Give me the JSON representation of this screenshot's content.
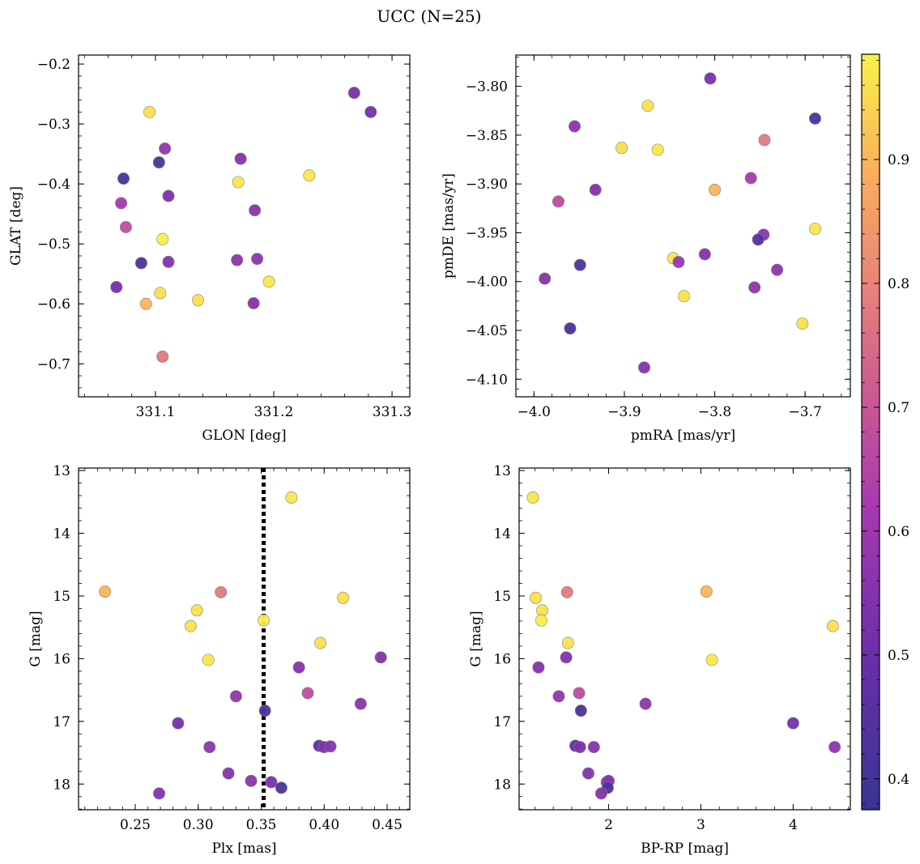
{
  "title": "UCC (N=25)",
  "colorbar": {
    "range": [
      0.375,
      0.985
    ],
    "ticks": [
      0.4,
      0.5,
      0.6,
      0.7,
      0.8,
      0.9
    ],
    "tick_labels": [
      "0.4",
      "0.5",
      "0.6",
      "0.7",
      "0.8",
      "0.9"
    ]
  },
  "chart_data": [
    {
      "type": "scatter",
      "xlabel": "GLON [deg]",
      "ylabel": "GLAT [deg]",
      "xlim": [
        331.035,
        331.315
      ],
      "ylim": [
        -0.755,
        -0.185
      ],
      "xticks": [
        331.1,
        331.2,
        331.3
      ],
      "xtick_labels": [
        "331.1",
        "331.2",
        "331.3"
      ],
      "yticks": [
        -0.2,
        -0.3,
        -0.4,
        -0.5,
        -0.6,
        -0.7
      ],
      "ytick_labels": [
        "−0.2",
        "−0.3",
        "−0.4",
        "−0.5",
        "−0.6",
        "−0.7"
      ],
      "points": [
        {
          "x": 331.268,
          "y": -0.248,
          "c": 0.53
        },
        {
          "x": 331.282,
          "y": -0.28,
          "c": 0.52
        },
        {
          "x": 331.095,
          "y": -0.28,
          "c": 0.96
        },
        {
          "x": 331.108,
          "y": -0.341,
          "c": 0.58
        },
        {
          "x": 331.172,
          "y": -0.358,
          "c": 0.55
        },
        {
          "x": 331.103,
          "y": -0.364,
          "c": 0.42
        },
        {
          "x": 331.073,
          "y": -0.391,
          "c": 0.42
        },
        {
          "x": 331.23,
          "y": -0.386,
          "c": 0.97
        },
        {
          "x": 331.17,
          "y": -0.397,
          "c": 0.97
        },
        {
          "x": 331.111,
          "y": -0.42,
          "c": 0.54
        },
        {
          "x": 331.071,
          "y": -0.432,
          "c": 0.62
        },
        {
          "x": 331.184,
          "y": -0.444,
          "c": 0.56
        },
        {
          "x": 331.075,
          "y": -0.472,
          "c": 0.68
        },
        {
          "x": 331.106,
          "y": -0.492,
          "c": 0.98
        },
        {
          "x": 331.088,
          "y": -0.532,
          "c": 0.42
        },
        {
          "x": 331.111,
          "y": -0.53,
          "c": 0.55
        },
        {
          "x": 331.169,
          "y": -0.527,
          "c": 0.57
        },
        {
          "x": 331.186,
          "y": -0.525,
          "c": 0.57
        },
        {
          "x": 331.196,
          "y": -0.563,
          "c": 0.97
        },
        {
          "x": 331.067,
          "y": -0.572,
          "c": 0.52
        },
        {
          "x": 331.104,
          "y": -0.582,
          "c": 0.96
        },
        {
          "x": 331.092,
          "y": -0.6,
          "c": 0.9
        },
        {
          "x": 331.136,
          "y": -0.594,
          "c": 0.96
        },
        {
          "x": 331.183,
          "y": -0.599,
          "c": 0.55
        },
        {
          "x": 331.106,
          "y": -0.688,
          "c": 0.78
        }
      ]
    },
    {
      "type": "scatter",
      "xlabel": "pmRA [mas/yr]",
      "ylabel": "pmDE [mas/yr]",
      "xlim": [
        -4.02,
        -3.65
      ],
      "ylim": [
        -4.118,
        -3.768
      ],
      "xticks": [
        -4.0,
        -3.9,
        -3.8,
        -3.7
      ],
      "xtick_labels": [
        "−4.0",
        "−3.9",
        "−3.8",
        "−3.7"
      ],
      "yticks": [
        -3.8,
        -3.85,
        -3.9,
        -3.95,
        -4.0,
        -4.05,
        -4.1
      ],
      "ytick_labels": [
        "−3.80",
        "−3.85",
        "−3.90",
        "−3.95",
        "−4.00",
        "−4.05",
        "−4.10"
      ],
      "points": [
        {
          "x": -3.805,
          "y": -3.792,
          "c": 0.53
        },
        {
          "x": -3.874,
          "y": -3.82,
          "c": 0.96
        },
        {
          "x": -3.689,
          "y": -3.833,
          "c": 0.42
        },
        {
          "x": -3.955,
          "y": -3.841,
          "c": 0.57
        },
        {
          "x": -3.745,
          "y": -3.855,
          "c": 0.78
        },
        {
          "x": -3.903,
          "y": -3.863,
          "c": 0.96
        },
        {
          "x": -3.863,
          "y": -3.865,
          "c": 0.97
        },
        {
          "x": -3.76,
          "y": -3.894,
          "c": 0.62
        },
        {
          "x": -3.932,
          "y": -3.906,
          "c": 0.55
        },
        {
          "x": -3.8,
          "y": -3.906,
          "c": 0.9
        },
        {
          "x": -3.973,
          "y": -3.918,
          "c": 0.68
        },
        {
          "x": -3.689,
          "y": -3.946,
          "c": 0.97
        },
        {
          "x": -3.746,
          "y": -3.952,
          "c": 0.56
        },
        {
          "x": -3.752,
          "y": -3.957,
          "c": 0.45
        },
        {
          "x": -3.811,
          "y": -3.972,
          "c": 0.55
        },
        {
          "x": -3.846,
          "y": -3.976,
          "c": 0.97
        },
        {
          "x": -3.84,
          "y": -3.98,
          "c": 0.6
        },
        {
          "x": -3.949,
          "y": -3.983,
          "c": 0.42
        },
        {
          "x": -3.731,
          "y": -3.988,
          "c": 0.57
        },
        {
          "x": -3.988,
          "y": -3.997,
          "c": 0.55
        },
        {
          "x": -3.756,
          "y": -4.006,
          "c": 0.57
        },
        {
          "x": -3.834,
          "y": -4.015,
          "c": 0.96
        },
        {
          "x": -3.703,
          "y": -4.043,
          "c": 0.96
        },
        {
          "x": -3.96,
          "y": -4.048,
          "c": 0.42
        },
        {
          "x": -3.878,
          "y": -4.088,
          "c": 0.55
        }
      ]
    },
    {
      "type": "scatter",
      "xlabel": "Plx [mas]",
      "ylabel": "G [mag]",
      "xlim": [
        0.205,
        0.468
      ],
      "ylim": [
        18.41,
        12.96
      ],
      "xticks": [
        0.25,
        0.3,
        0.35,
        0.4,
        0.45
      ],
      "xtick_labels": [
        "0.25",
        "0.30",
        "0.35",
        "0.40",
        "0.45"
      ],
      "yticks": [
        13,
        14,
        15,
        16,
        17,
        18
      ],
      "ytick_labels": [
        "13",
        "14",
        "15",
        "16",
        "17",
        "18"
      ],
      "vline": 0.352,
      "points": [
        {
          "x": 0.374,
          "y": 13.43,
          "c": 0.97
        },
        {
          "x": 0.226,
          "y": 14.93,
          "c": 0.9
        },
        {
          "x": 0.318,
          "y": 14.94,
          "c": 0.78
        },
        {
          "x": 0.415,
          "y": 15.03,
          "c": 0.96
        },
        {
          "x": 0.299,
          "y": 15.23,
          "c": 0.96
        },
        {
          "x": 0.352,
          "y": 15.39,
          "c": 0.98
        },
        {
          "x": 0.294,
          "y": 15.48,
          "c": 0.96
        },
        {
          "x": 0.397,
          "y": 15.75,
          "c": 0.96
        },
        {
          "x": 0.445,
          "y": 15.98,
          "c": 0.55
        },
        {
          "x": 0.308,
          "y": 16.02,
          "c": 0.97
        },
        {
          "x": 0.38,
          "y": 16.14,
          "c": 0.55
        },
        {
          "x": 0.387,
          "y": 16.55,
          "c": 0.68
        },
        {
          "x": 0.33,
          "y": 16.6,
          "c": 0.58
        },
        {
          "x": 0.429,
          "y": 16.72,
          "c": 0.57
        },
        {
          "x": 0.353,
          "y": 16.83,
          "c": 0.42
        },
        {
          "x": 0.284,
          "y": 17.03,
          "c": 0.52
        },
        {
          "x": 0.309,
          "y": 17.41,
          "c": 0.57
        },
        {
          "x": 0.396,
          "y": 17.39,
          "c": 0.46
        },
        {
          "x": 0.4,
          "y": 17.41,
          "c": 0.54
        },
        {
          "x": 0.405,
          "y": 17.4,
          "c": 0.56
        },
        {
          "x": 0.324,
          "y": 17.83,
          "c": 0.55
        },
        {
          "x": 0.342,
          "y": 17.95,
          "c": 0.56
        },
        {
          "x": 0.358,
          "y": 17.97,
          "c": 0.53
        },
        {
          "x": 0.366,
          "y": 18.06,
          "c": 0.42
        },
        {
          "x": 0.269,
          "y": 18.15,
          "c": 0.55
        }
      ]
    },
    {
      "type": "scatter",
      "xlabel": "BP-RP [mag]",
      "ylabel": "G [mag]",
      "xlim": [
        1.03,
        4.62
      ],
      "ylim": [
        18.41,
        12.96
      ],
      "xticks": [
        2,
        3,
        4
      ],
      "xtick_labels": [
        "2",
        "3",
        "4"
      ],
      "yticks": [
        13,
        14,
        15,
        16,
        17,
        18
      ],
      "ytick_labels": [
        "13",
        "14",
        "15",
        "16",
        "17",
        "18"
      ],
      "points": [
        {
          "x": 1.18,
          "y": 13.43,
          "c": 0.97
        },
        {
          "x": 1.55,
          "y": 14.94,
          "c": 0.78
        },
        {
          "x": 3.06,
          "y": 14.93,
          "c": 0.9
        },
        {
          "x": 1.21,
          "y": 15.03,
          "c": 0.96
        },
        {
          "x": 1.28,
          "y": 15.23,
          "c": 0.96
        },
        {
          "x": 1.27,
          "y": 15.39,
          "c": 0.98
        },
        {
          "x": 4.43,
          "y": 15.48,
          "c": 0.96
        },
        {
          "x": 1.56,
          "y": 15.75,
          "c": 0.96
        },
        {
          "x": 1.54,
          "y": 15.98,
          "c": 0.55
        },
        {
          "x": 3.12,
          "y": 16.02,
          "c": 0.97
        },
        {
          "x": 1.24,
          "y": 16.14,
          "c": 0.55
        },
        {
          "x": 1.68,
          "y": 16.55,
          "c": 0.68
        },
        {
          "x": 1.46,
          "y": 16.6,
          "c": 0.58
        },
        {
          "x": 2.4,
          "y": 16.72,
          "c": 0.57
        },
        {
          "x": 1.7,
          "y": 16.83,
          "c": 0.42
        },
        {
          "x": 4.0,
          "y": 17.03,
          "c": 0.52
        },
        {
          "x": 1.64,
          "y": 17.39,
          "c": 0.46
        },
        {
          "x": 1.69,
          "y": 17.41,
          "c": 0.54
        },
        {
          "x": 1.84,
          "y": 17.41,
          "c": 0.56
        },
        {
          "x": 4.45,
          "y": 17.41,
          "c": 0.57
        },
        {
          "x": 1.78,
          "y": 17.83,
          "c": 0.55
        },
        {
          "x": 1.98,
          "y": 17.97,
          "c": 0.53
        },
        {
          "x": 2.0,
          "y": 17.95,
          "c": 0.56
        },
        {
          "x": 1.99,
          "y": 18.06,
          "c": 0.42
        },
        {
          "x": 1.92,
          "y": 18.15,
          "c": 0.55
        }
      ]
    }
  ]
}
